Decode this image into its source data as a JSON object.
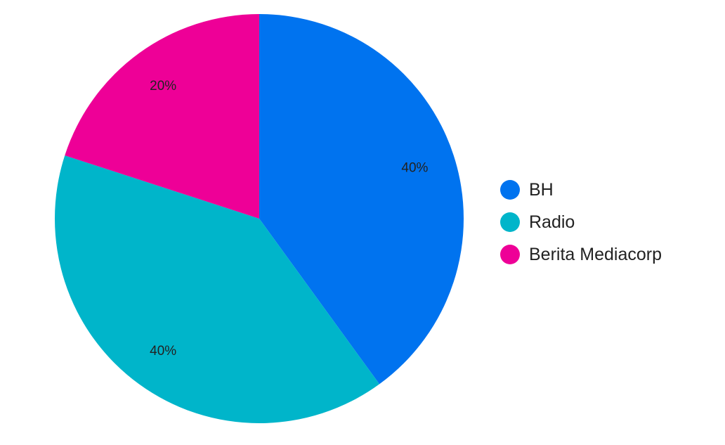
{
  "chart_data": {
    "type": "pie",
    "slices": [
      {
        "label": "BH",
        "value": 40,
        "display": "40%",
        "color": "#0073ef"
      },
      {
        "label": "Radio",
        "value": 40,
        "display": "40%",
        "color": "#00b5ca"
      },
      {
        "label": "Berita Mediacorp",
        "value": 20,
        "display": "20%",
        "color": "#ee0097"
      }
    ],
    "start": "12 o'clock",
    "direction": "clockwise",
    "legend_position": "right"
  }
}
